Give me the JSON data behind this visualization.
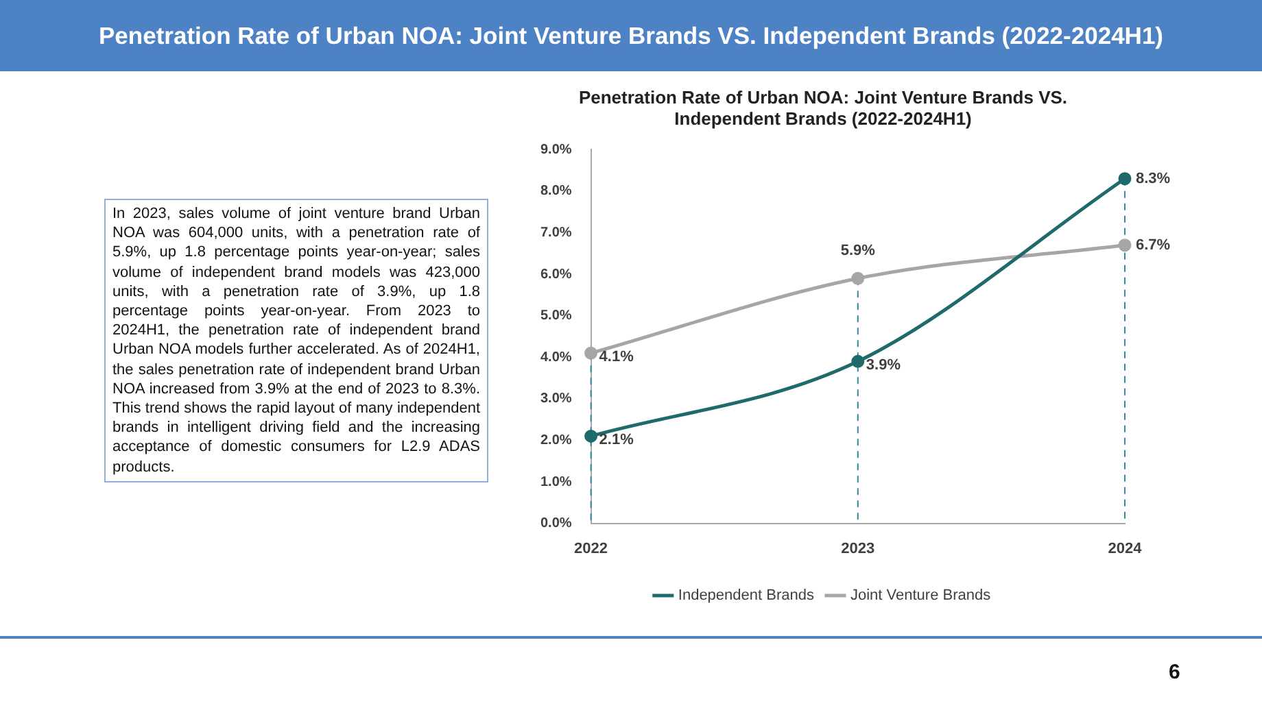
{
  "chart_data": {
    "type": "line",
    "title": "Penetration Rate of Urban NOA: Joint Venture Brands VS. Independent Brands (2022-2024H1)",
    "subtitle": "Penetration Rate of Urban NOA: Joint Venture Brands VS. Independent Brands (2022-2024H1)",
    "annotations": [
      "In 2023, sales volume of joint venture brand Urban NOA was 604,000 units, with a penetration rate of 5.9%, up 1.8 percentage points year-on-year; sales volume of independent brand models was 423,000 units, with a penetration rate of 3.9%, up 1.8 percentage points year-on-year. From 2023 to 2024H1, the penetration rate of independent brand Urban NOA models further accelerated. As of 2024H1, the sales penetration rate of independent brand Urban NOA increased from 3.9% at the end of 2023 to 8.3%. This trend shows the rapid layout of many independent brands in intelligent driving field and the increasing acceptance of domestic consumers for L2.9 ADAS products.",
      "6"
    ],
    "categories": [
      "2022",
      "2023",
      "2024"
    ],
    "series": [
      {
        "name": "Independent Brands",
        "color": "#1f6b6b",
        "values": [
          2.1,
          3.9,
          8.3
        ],
        "value_labels": [
          "2.1%",
          "3.9%",
          "8.3%"
        ]
      },
      {
        "name": "Joint Venture Brands",
        "color": "#a6a6a6",
        "values": [
          4.1,
          5.9,
          6.7
        ],
        "value_labels": [
          "4.1%",
          "5.9%",
          "6.7%"
        ]
      }
    ],
    "ylim": [
      0,
      9
    ],
    "yticks": [
      {
        "value": 0,
        "label": "0.0%"
      },
      {
        "value": 1,
        "label": "1.0%"
      },
      {
        "value": 2,
        "label": "2.0%"
      },
      {
        "value": 3,
        "label": "3.0%"
      },
      {
        "value": 4,
        "label": "4.0%"
      },
      {
        "value": 5,
        "label": "5.0%"
      },
      {
        "value": 6,
        "label": "6.0%"
      },
      {
        "value": 7,
        "label": "7.0%"
      },
      {
        "value": 8,
        "label": "8.0%"
      },
      {
        "value": 9,
        "label": "9.0%"
      }
    ],
    "ref_lines": [
      {
        "axis": "x",
        "value": "2022",
        "color": "#2e8b9a",
        "line_style": "dashed"
      },
      {
        "axis": "x",
        "value": "2023",
        "color": "#2e8b9a",
        "line_style": "dashed"
      },
      {
        "axis": "x",
        "value": "2024",
        "color": "#2e8b9a",
        "line_style": "dashed"
      }
    ],
    "grid": false,
    "legend": "bottom",
    "marker": "circle",
    "line_style": "solid"
  }
}
